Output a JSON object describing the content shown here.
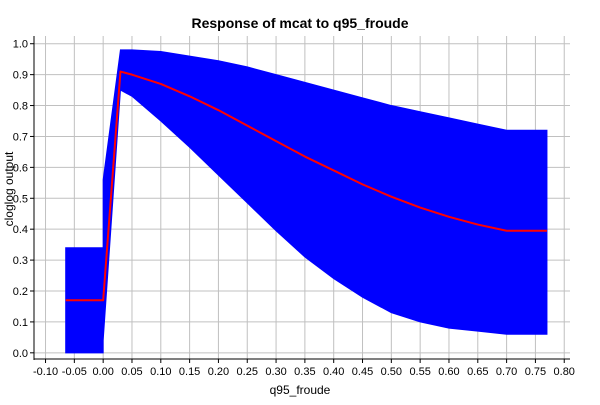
{
  "chart_data": {
    "type": "area",
    "title": "Response of mcat to q95_froude",
    "xlabel": "q95_froude",
    "ylabel": "cloglog output",
    "xlim": [
      -0.12,
      0.81
    ],
    "ylim": [
      -0.02,
      1.025
    ],
    "x_ticks": [
      -0.1,
      -0.05,
      0.0,
      0.05,
      0.1,
      0.15,
      0.2,
      0.25,
      0.3,
      0.35,
      0.4,
      0.45,
      0.5,
      0.55,
      0.6,
      0.65,
      0.7,
      0.75,
      0.8
    ],
    "x_tick_labels": [
      "-0.10",
      "-0.05",
      "0.00",
      "0.05",
      "0.10",
      "0.15",
      "0.20",
      "0.25",
      "0.30",
      "0.35",
      "0.40",
      "0.45",
      "0.50",
      "0.55",
      "0.60",
      "0.65",
      "0.70",
      "0.75",
      "0.80"
    ],
    "y_ticks": [
      0.0,
      0.1,
      0.2,
      0.3,
      0.4,
      0.5,
      0.6,
      0.7,
      0.8,
      0.9,
      1.0
    ],
    "y_tick_labels": [
      "0.0",
      "0.1",
      "0.2",
      "0.3",
      "0.4",
      "0.5",
      "0.6",
      "0.7",
      "0.8",
      "0.9",
      "1.0"
    ],
    "grid": true,
    "legend": "none",
    "colors": {
      "band": "#0000ff",
      "line": "#ff0000",
      "grid": "#c0c0c0",
      "axis": "#000000",
      "background": "#ffffff"
    },
    "series": [
      {
        "role": "mean",
        "x": [
          -0.065,
          0.0,
          0.03,
          0.05,
          0.1,
          0.15,
          0.2,
          0.25,
          0.3,
          0.35,
          0.4,
          0.45,
          0.5,
          0.55,
          0.6,
          0.65,
          0.7,
          0.77
        ],
        "y": [
          0.17,
          0.17,
          0.91,
          0.9,
          0.87,
          0.83,
          0.785,
          0.735,
          0.685,
          0.635,
          0.59,
          0.545,
          0.505,
          0.47,
          0.44,
          0.415,
          0.395,
          0.395
        ]
      },
      {
        "role": "upper",
        "x": [
          -0.065,
          0.0,
          0.0,
          0.03,
          0.05,
          0.1,
          0.15,
          0.2,
          0.25,
          0.3,
          0.35,
          0.4,
          0.45,
          0.5,
          0.55,
          0.6,
          0.65,
          0.7,
          0.7,
          0.77
        ],
        "y": [
          0.34,
          0.34,
          0.56,
          0.98,
          0.98,
          0.975,
          0.96,
          0.945,
          0.925,
          0.9,
          0.875,
          0.85,
          0.825,
          0.8,
          0.78,
          0.76,
          0.74,
          0.72,
          0.72,
          0.72
        ]
      },
      {
        "role": "lower",
        "x": [
          -0.065,
          0.0,
          0.0,
          0.03,
          0.05,
          0.1,
          0.15,
          0.2,
          0.25,
          0.3,
          0.35,
          0.4,
          0.45,
          0.5,
          0.55,
          0.6,
          0.65,
          0.7,
          0.7,
          0.77
        ],
        "y": [
          0.0,
          0.0,
          0.04,
          0.85,
          0.83,
          0.75,
          0.665,
          0.575,
          0.485,
          0.395,
          0.31,
          0.24,
          0.18,
          0.13,
          0.1,
          0.08,
          0.07,
          0.06,
          0.06,
          0.06
        ]
      }
    ]
  }
}
